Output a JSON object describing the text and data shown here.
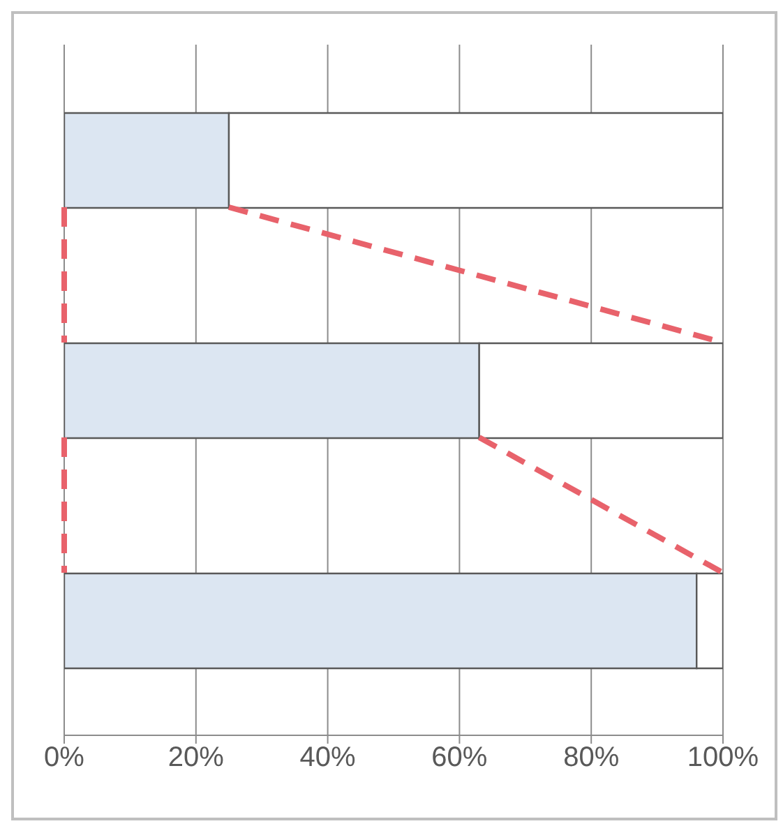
{
  "chart_data": {
    "type": "bar",
    "orientation": "horizontal",
    "stacked": true,
    "categories": [
      null,
      null,
      null
    ],
    "series": [
      {
        "color": "#dce6f2",
        "values": [
          25,
          63,
          96
        ]
      },
      {
        "color": "#ffffff",
        "values": [
          75,
          37,
          4
        ]
      }
    ],
    "xlim": [
      0,
      100
    ],
    "xticks": [
      {
        "value": 0,
        "label": "0%"
      },
      {
        "value": 20,
        "label": "20%"
      },
      {
        "value": 40,
        "label": "40%"
      },
      {
        "value": 60,
        "label": "60%"
      },
      {
        "value": 80,
        "label": "80%"
      },
      {
        "value": 100,
        "label": "100%"
      }
    ],
    "grid": "x"
  }
}
